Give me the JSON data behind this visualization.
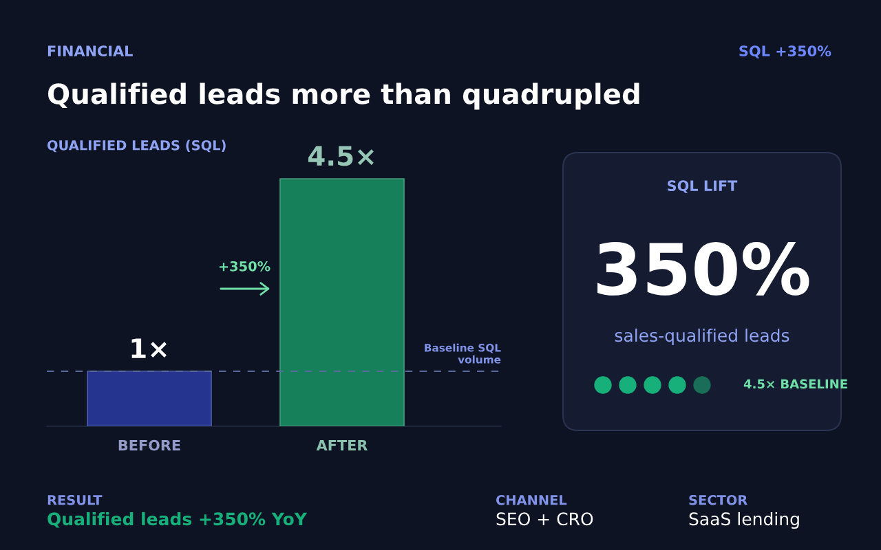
{
  "chart_data": [
    {
      "type": "bar",
      "subtitle": "FINANCIAL",
      "title": "Qualified leads more than quadrupled",
      "ylabel": "QUALIFIED LEADS (SQL)",
      "categories": [
        "BEFORE",
        "AFTER"
      ],
      "series": [
        {
          "type": "bar",
          "colors": [
            "#25358f",
            "#15805a"
          ],
          "values": [
            1,
            4.5
          ],
          "value_labels": [
            "1×",
            "4.5×"
          ]
        }
      ],
      "ref_lines": [
        {
          "axis": "y",
          "value": 1,
          "label": "Baseline SQL volume",
          "color": "#5a6a9a",
          "line_style": "dashed"
        }
      ],
      "annotations": [
        "SQL +350%",
        "+350%",
        "RESULT",
        "Qualified leads +350% YoY",
        "CHANNEL",
        "SEO + CRO",
        "SECTOR",
        "SaaS lending"
      ],
      "grid": false,
      "legend": false
    },
    {
      "type": "other",
      "title": "SQL LIFT",
      "annotations": [
        "350%",
        "sales-qualified leads",
        "4.5× BASELINE"
      ]
    }
  ]
}
